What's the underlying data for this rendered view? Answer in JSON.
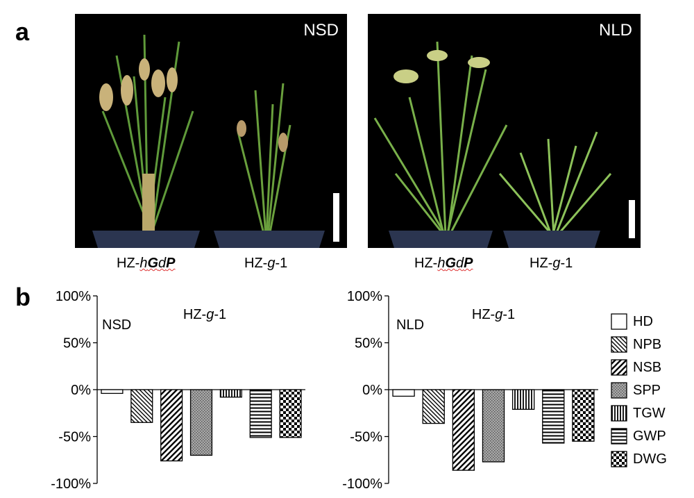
{
  "panel_a": {
    "letter": "a",
    "photos": [
      {
        "tag": "NSD",
        "left_label_prefix": "HZ-",
        "left_label_h": "h",
        "left_label_G": "G",
        "left_label_d": "d",
        "left_label_P": "P",
        "right_label_prefix": "HZ-",
        "right_label_g": "g",
        "right_label_suffix": "-1"
      },
      {
        "tag": "NLD",
        "left_label_prefix": "HZ-",
        "left_label_h": "h",
        "left_label_G": "G",
        "left_label_d": "d",
        "left_label_P": "P",
        "right_label_prefix": "HZ-",
        "right_label_g": "g",
        "right_label_suffix": "-1"
      }
    ]
  },
  "panel_b": {
    "letter": "b"
  },
  "colors": {
    "photo_bg": "#000000",
    "bar_stroke": "#000000",
    "fill_white": "#ffffff"
  },
  "chart_data": [
    {
      "type": "bar",
      "condition_label": "NSD",
      "title": "HZ-g-1",
      "categories": [
        "HD",
        "NPB",
        "NSB",
        "SPP",
        "TGW",
        "GWP",
        "DWG"
      ],
      "values": [
        -4,
        -35,
        -76,
        -70,
        -8,
        -51,
        -51
      ],
      "ylim": [
        -100,
        100
      ],
      "yticks": [
        "100%",
        "50%",
        "0%",
        "-50%",
        "-100%"
      ],
      "ytick_values": [
        100,
        50,
        0,
        -50,
        -100
      ]
    },
    {
      "type": "bar",
      "condition_label": "NLD",
      "title": "HZ-g-1",
      "categories": [
        "HD",
        "NPB",
        "NSB",
        "SPP",
        "TGW",
        "GWP",
        "DWG"
      ],
      "values": [
        -7,
        -36,
        -86,
        -77,
        -21,
        -57,
        -55
      ],
      "ylim": [
        -100,
        100
      ],
      "yticks": [
        "100%",
        "50%",
        "0%",
        "-50%",
        "-100%"
      ],
      "ytick_values": [
        100,
        50,
        0,
        -50,
        -100
      ]
    }
  ],
  "legend": [
    {
      "label": "HD",
      "pattern": "none"
    },
    {
      "label": "NPB",
      "pattern": "back-diagonal"
    },
    {
      "label": "NSB",
      "pattern": "forward-diagonal-wide"
    },
    {
      "label": "SPP",
      "pattern": "dotted-gray"
    },
    {
      "label": "TGW",
      "pattern": "vertical"
    },
    {
      "label": "GWP",
      "pattern": "horizontal"
    },
    {
      "label": "DWG",
      "pattern": "checker"
    }
  ]
}
